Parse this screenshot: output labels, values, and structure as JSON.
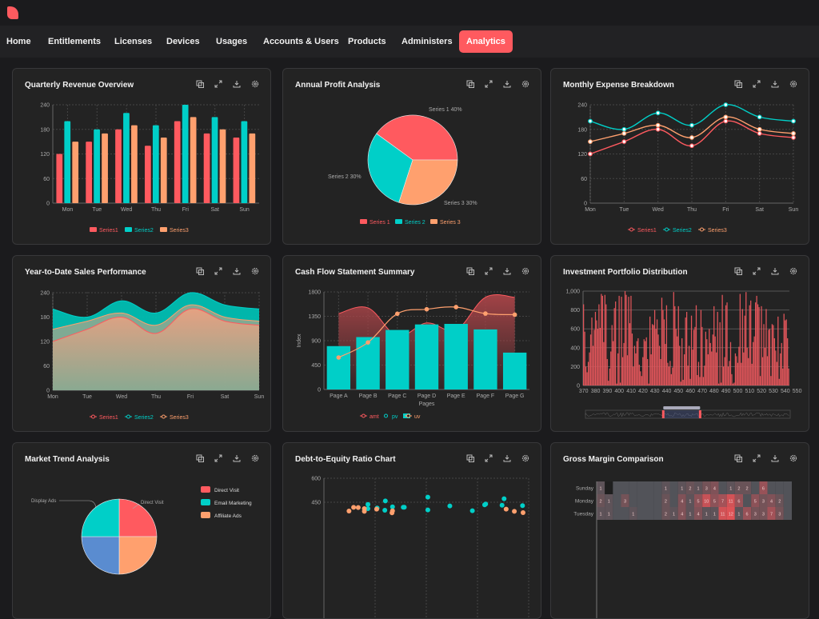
{
  "nav": {
    "items": [
      "Home",
      "Entitlements",
      "Licenses",
      "Devices",
      "Usages",
      "Accounts & Users",
      "Products",
      "Administers",
      "Analytics"
    ],
    "active": "Analytics"
  },
  "colors": {
    "red": "#ff5a5f",
    "teal": "#00cfc8",
    "orange": "#ffa06e",
    "accent": "#ff5a5f"
  },
  "card_tools": [
    "copy-icon",
    "expand-icon",
    "download-icon",
    "gear-icon"
  ],
  "cards": [
    {
      "title": "Quarterly Revenue Overview"
    },
    {
      "title": "Annual Profit Analysis"
    },
    {
      "title": "Monthly Expense Breakdown"
    },
    {
      "title": "Year-to-Date Sales Performance"
    },
    {
      "title": "Cash Flow Statement Summary"
    },
    {
      "title": "Investment Portfolio Distribution"
    },
    {
      "title": "Market Trend Analysis"
    },
    {
      "title": "Debt-to-Equity Ratio Chart"
    },
    {
      "title": "Gross Margin Comparison"
    }
  ],
  "chart_data": [
    {
      "type": "bar",
      "categories": [
        "Mon",
        "Tue",
        "Wed",
        "Thu",
        "Fri",
        "Sat",
        "Sun"
      ],
      "ylim": [
        0,
        240
      ],
      "yticks": [
        0,
        60,
        120,
        180,
        240
      ],
      "grid": true,
      "legend": "bottom",
      "series": [
        {
          "name": "Series1",
          "values": [
            120,
            150,
            180,
            140,
            200,
            170,
            160
          ]
        },
        {
          "name": "Series2",
          "values": [
            200,
            180,
            220,
            190,
            240,
            210,
            200
          ]
        },
        {
          "name": "Series3",
          "values": [
            150,
            170,
            190,
            160,
            210,
            180,
            170
          ]
        }
      ]
    },
    {
      "type": "pie",
      "legend": "bottom",
      "slices": [
        {
          "name": "Series 1",
          "value": 40,
          "label": "Series 1 40%"
        },
        {
          "name": "Series 2",
          "value": 30,
          "label": "Series 2 30%"
        },
        {
          "name": "Series 3",
          "value": 30,
          "label": "Series 3 30%"
        }
      ]
    },
    {
      "type": "line",
      "smooth": true,
      "categories": [
        "Mon",
        "Tue",
        "Wed",
        "Thu",
        "Fri",
        "Sat",
        "Sun"
      ],
      "ylim": [
        0,
        240
      ],
      "yticks": [
        0,
        60,
        120,
        180,
        240
      ],
      "grid": true,
      "legend": "bottom",
      "series": [
        {
          "name": "Series1",
          "values": [
            120,
            150,
            180,
            140,
            200,
            170,
            160
          ]
        },
        {
          "name": "Series2",
          "values": [
            200,
            180,
            220,
            190,
            240,
            210,
            200
          ]
        },
        {
          "name": "Series3",
          "values": [
            150,
            170,
            190,
            160,
            210,
            180,
            170
          ]
        }
      ]
    },
    {
      "type": "area",
      "smooth": true,
      "categories": [
        "Mon",
        "Tue",
        "Wed",
        "Thu",
        "Fri",
        "Sat",
        "Sun"
      ],
      "ylim": [
        0,
        240
      ],
      "yticks": [
        0,
        60,
        120,
        180,
        240
      ],
      "grid": true,
      "legend": "bottom",
      "series": [
        {
          "name": "Series1",
          "values": [
            120,
            150,
            180,
            140,
            200,
            170,
            160
          ]
        },
        {
          "name": "Series2",
          "values": [
            200,
            180,
            220,
            190,
            240,
            210,
            200
          ]
        },
        {
          "name": "Series3",
          "values": [
            150,
            170,
            190,
            160,
            210,
            180,
            170
          ]
        }
      ]
    },
    {
      "type": "composed",
      "categories": [
        "Page A",
        "Page B",
        "Page C",
        "Page D",
        "Page E",
        "Page F",
        "Page G"
      ],
      "xlabel": "Pages",
      "ylabel": "Index",
      "ylim": [
        0,
        1800
      ],
      "yticks": [
        0,
        450,
        900,
        1350,
        1800
      ],
      "grid": true,
      "legend": "bottom",
      "series": [
        {
          "name": "amt",
          "kind": "area",
          "values": [
            1400,
            1506,
            989,
            1228,
            1100,
            1700,
            1700
          ]
        },
        {
          "name": "pv",
          "kind": "bar",
          "values": [
            800,
            967,
            1098,
            1200,
            1210,
            1108,
            680
          ]
        },
        {
          "name": "uv",
          "kind": "line",
          "values": [
            590,
            868,
            1397,
            1480,
            1520,
            1400,
            1380
          ]
        }
      ]
    },
    {
      "type": "bar",
      "x_start": 370,
      "xticks": [
        370,
        380,
        390,
        400,
        410,
        420,
        430,
        440,
        450,
        460,
        470,
        480,
        490,
        500,
        510,
        520,
        530,
        540,
        550
      ],
      "ylim": [
        0,
        1000
      ],
      "yticks": [
        "0",
        "200",
        "400",
        "600",
        "800",
        "1,000"
      ],
      "grid": true,
      "zoom_window": [
        0.38,
        0.56
      ],
      "values": [
        860,
        570,
        200,
        140,
        250,
        350,
        540,
        720,
        420,
        590,
        780,
        690,
        600,
        860,
        610,
        970,
        950,
        460,
        960,
        860,
        280,
        50,
        180,
        360,
        640,
        470,
        820,
        890,
        20,
        340,
        950,
        30,
        940,
        300,
        450,
        1000,
        960,
        320,
        940,
        660,
        950,
        550,
        200,
        420,
        340,
        470,
        500,
        220,
        150,
        100,
        300,
        490,
        470,
        510,
        280,
        20,
        730,
        330,
        650,
        640,
        800,
        600,
        700,
        540,
        420,
        280,
        930,
        800,
        700,
        440,
        850,
        240,
        200,
        260,
        120,
        190,
        990,
        840,
        600,
        520,
        840,
        420,
        40,
        500,
        60,
        330,
        720,
        780,
        210,
        420,
        70,
        740,
        380,
        590,
        620,
        850,
        110,
        250,
        90,
        800,
        620,
        90,
        210,
        570,
        490,
        330,
        600,
        450,
        360,
        540,
        840,
        520,
        350,
        780,
        20,
        670,
        30,
        960,
        200,
        300,
        850,
        880,
        200,
        260,
        460,
        120,
        20,
        30,
        340,
        310,
        240,
        410,
        970,
        240,
        810,
        350,
        740,
        990,
        400,
        290,
        850,
        900,
        230,
        460,
        520,
        880,
        950,
        860,
        830,
        100,
        840,
        300,
        650,
        400,
        810,
        310,
        590,
        600,
        100,
        650,
        640,
        500,
        370,
        250,
        730,
        70,
        340,
        450,
        180,
        760,
        690,
        700,
        500,
        180
      ]
    },
    {
      "type": "pie",
      "legend": "right",
      "slices": [
        {
          "name": "Direct Visit",
          "value": 25,
          "label": "Direct Visit"
        },
        {
          "name": "Email Marketing",
          "value": 25
        },
        {
          "name": "Affiliate Ads",
          "value": 25
        },
        {
          "name": "Display Ads",
          "value": 25,
          "label": "Display Ads"
        }
      ]
    },
    {
      "type": "scatter",
      "xlim": [
        0,
        400
      ],
      "ylim": [
        0,
        600
      ],
      "yticks": [
        450,
        600
      ],
      "grid": true,
      "series": [
        {
          "color": "teal",
          "points": [
            [
              86,
              436
            ],
            [
              120,
              458
            ],
            [
              86,
              410
            ],
            [
              155,
              419
            ],
            [
              157,
              419
            ],
            [
              203,
              482
            ],
            [
              203,
              402
            ],
            [
              246,
              427
            ],
            [
              290,
              397
            ],
            [
              314,
              434
            ],
            [
              316,
              439
            ],
            [
              348,
              431
            ],
            [
              352,
              472
            ],
            [
              388,
              429
            ],
            [
              119,
              400
            ],
            [
              134,
              421
            ],
            [
              104,
              414
            ]
          ]
        },
        {
          "color": "orange",
          "points": [
            [
              49,
              395
            ],
            [
              58,
              418
            ],
            [
              67,
              417
            ],
            [
              79,
              410
            ],
            [
              79,
              393
            ],
            [
              103,
              407
            ],
            [
              134,
              396
            ],
            [
              133,
              384
            ],
            [
              356,
              407
            ],
            [
              372,
              393
            ],
            [
              389,
              385
            ]
          ]
        }
      ]
    },
    {
      "type": "heatmap",
      "rows": [
        "Sunday",
        "Monday",
        "Tuesday"
      ],
      "max": 12,
      "values": [
        [
          1,
          null,
          0,
          0,
          0,
          0,
          0,
          0,
          1,
          0,
          1,
          2,
          1,
          3,
          4,
          0,
          1,
          2,
          2,
          0,
          6,
          0,
          0,
          0
        ],
        [
          2,
          1,
          0,
          3,
          0,
          0,
          0,
          0,
          2,
          0,
          4,
          1,
          5,
          10,
          5,
          7,
          11,
          6,
          0,
          5,
          3,
          4,
          2,
          0
        ],
        [
          1,
          1,
          0,
          0,
          1,
          0,
          0,
          0,
          2,
          1,
          4,
          1,
          4,
          1,
          1,
          11,
          12,
          1,
          6,
          3,
          3,
          7,
          3,
          0
        ]
      ]
    }
  ]
}
